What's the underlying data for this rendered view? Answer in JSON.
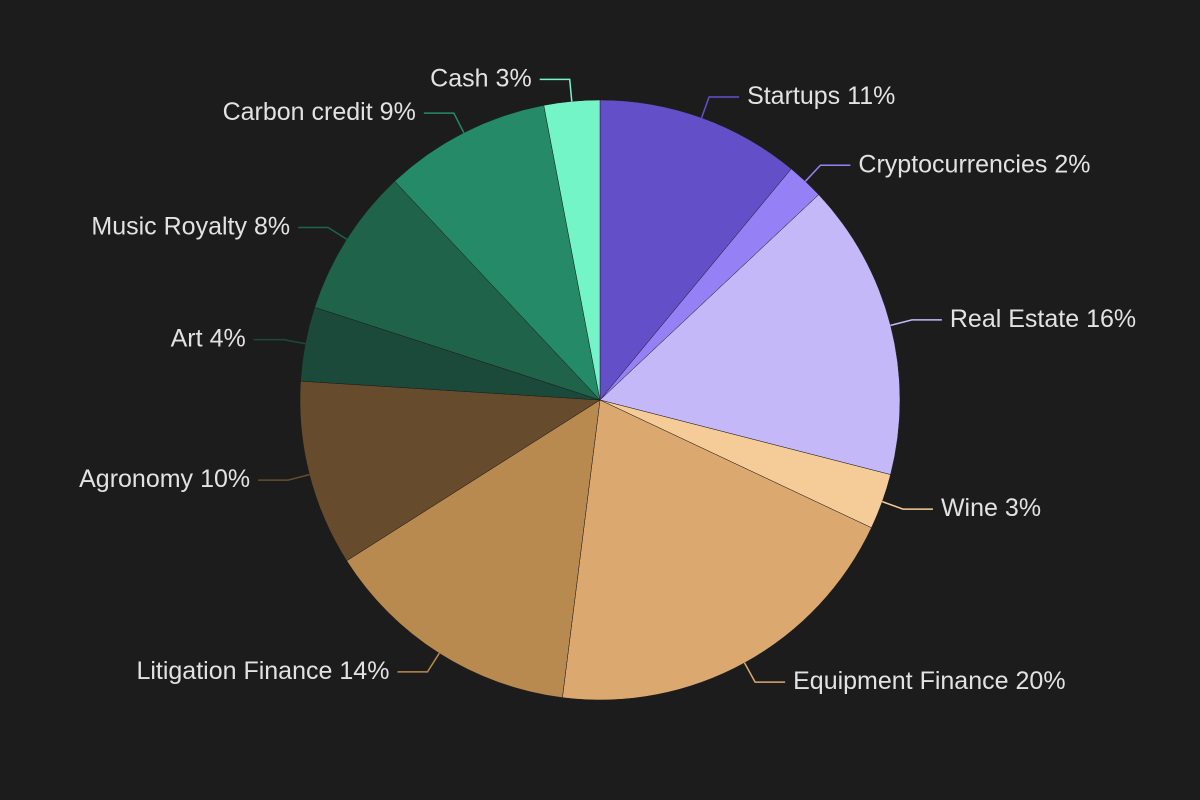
{
  "chart_data": {
    "type": "pie",
    "categories": [
      "Startups",
      "Cryptocurrencies",
      "Real Estate",
      "Wine",
      "Equipment Finance",
      "Litigation Finance",
      "Agronomy",
      "Art",
      "Music Royalty",
      "Carbon credit",
      "Cash"
    ],
    "values": [
      11,
      2,
      16,
      3,
      20,
      14,
      10,
      4,
      8,
      9,
      3
    ],
    "value_labels": [
      "11%",
      "2%",
      "16%",
      "3%",
      "20%",
      "14%",
      "10%",
      "4%",
      "8%",
      "9%",
      "3%"
    ],
    "colors": [
      "#6350c9",
      "#9580f5",
      "#c4b8f8",
      "#f5cc98",
      "#dba970",
      "#b98a50",
      "#664c2c",
      "#1c4a3a",
      "#1e634a",
      "#248a68",
      "#74f5c8"
    ]
  }
}
